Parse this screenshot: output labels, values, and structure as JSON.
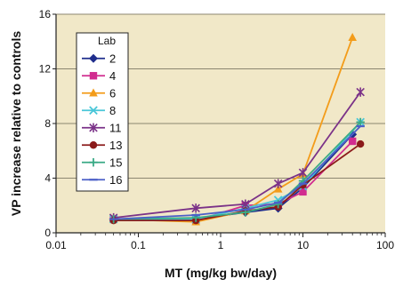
{
  "chart_data": {
    "type": "line",
    "title": "",
    "xlabel": "MT (mg/kg bw/day)",
    "ylabel": "VP increase relative to controls",
    "xscale": "log",
    "xlim": [
      0.01,
      100
    ],
    "ylim": [
      0,
      16
    ],
    "x_ticks": [
      0.01,
      0.1,
      1,
      10,
      100
    ],
    "x_tick_labels": [
      "0.01",
      "0.1",
      "1",
      "10",
      "100"
    ],
    "y_ticks": [
      0,
      4,
      8,
      12,
      16
    ],
    "y_tick_labels": [
      "0",
      "4",
      "8",
      "12",
      "16"
    ],
    "grid": "horizontal",
    "plot_background": "#f1e8c8",
    "legend": {
      "title": "Lab",
      "placement": "top-left"
    },
    "series": [
      {
        "name": "2",
        "color": "#1f2d8c",
        "marker": "diamond",
        "x": [
          0.05,
          0.5,
          2,
          5,
          10,
          40
        ],
        "y": [
          1.0,
          1.0,
          1.5,
          1.8,
          3.3,
          7.2
        ]
      },
      {
        "name": "4",
        "color": "#d12c8f",
        "marker": "square",
        "x": [
          0.05,
          0.5,
          2,
          5,
          10,
          40
        ],
        "y": [
          1.0,
          0.9,
          2.0,
          2.1,
          3.0,
          6.7
        ]
      },
      {
        "name": "6",
        "color": "#f39c1a",
        "marker": "triangle",
        "x": [
          0.05,
          0.5,
          2,
          5,
          10,
          40
        ],
        "y": [
          1.0,
          0.8,
          1.6,
          3.2,
          4.3,
          14.3
        ]
      },
      {
        "name": "8",
        "color": "#49c6d8",
        "marker": "x",
        "x": [
          0.05,
          0.5,
          2,
          5,
          10,
          50
        ],
        "y": [
          1.0,
          1.0,
          1.8,
          2.4,
          3.4,
          8.1
        ]
      },
      {
        "name": "11",
        "color": "#7b3288",
        "marker": "star",
        "x": [
          0.05,
          0.5,
          2,
          5,
          10,
          50
        ],
        "y": [
          1.1,
          1.8,
          2.1,
          3.6,
          4.4,
          10.3
        ]
      },
      {
        "name": "13",
        "color": "#8b1a1a",
        "marker": "circle",
        "x": [
          0.05,
          0.5,
          2,
          5,
          10,
          50
        ],
        "y": [
          0.9,
          0.9,
          1.6,
          1.9,
          3.5,
          6.5
        ]
      },
      {
        "name": "15",
        "color": "#3aaa86",
        "marker": "plus",
        "x": [
          0.05,
          0.5,
          2,
          5,
          10,
          50
        ],
        "y": [
          1.0,
          1.1,
          1.5,
          2.1,
          3.8,
          8.1
        ]
      },
      {
        "name": "16",
        "color": "#4b5fc8",
        "marker": "dash",
        "x": [
          0.05,
          0.5,
          2,
          5,
          10,
          50
        ],
        "y": [
          1.0,
          1.3,
          1.7,
          2.2,
          3.6,
          7.8
        ]
      }
    ]
  }
}
